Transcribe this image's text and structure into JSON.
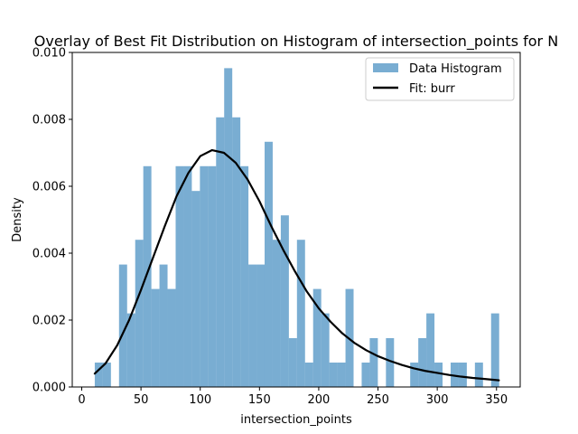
{
  "chart_data": {
    "type": "histogram",
    "title": "Overlay of Best Fit Distribution on Histogram of intersection_points for N",
    "xlabel": "intersection_points",
    "ylabel": "Density",
    "xlim": [
      -8,
      370
    ],
    "ylim": [
      0,
      0.01
    ],
    "xticks": [
      0,
      50,
      100,
      150,
      200,
      250,
      300,
      350
    ],
    "yticks": [
      0.0,
      0.002,
      0.004,
      0.006,
      0.008,
      0.01
    ],
    "ytick_labels": [
      "0.000",
      "0.002",
      "0.004",
      "0.006",
      "0.008",
      "0.010"
    ],
    "grid": false,
    "legend_position": "top-right",
    "histogram": {
      "name": "Data Histogram",
      "color": "#1f77b4",
      "alpha": 0.6,
      "bin_edges": [
        11,
        17.825,
        24.65,
        31.475,
        38.3,
        45.125,
        51.95,
        58.775,
        65.6,
        72.425,
        79.25,
        86.075,
        92.9,
        99.725,
        106.55,
        113.375,
        120.2,
        127.025,
        133.85,
        140.675,
        147.5,
        154.325,
        161.15,
        167.975,
        174.8,
        181.625,
        188.45,
        195.275,
        202.1,
        208.925,
        215.75,
        222.575,
        229.4,
        236.225,
        243.05,
        249.875,
        256.7,
        263.525,
        270.35,
        277.175,
        284.0,
        290.825,
        297.65,
        304.475,
        311.3,
        318.125,
        324.95,
        331.775,
        338.6,
        345.425,
        352.25
      ],
      "densities": [
        0.00073,
        0.00073,
        0.0,
        0.00366,
        0.0022,
        0.0044,
        0.0066,
        0.00293,
        0.00366,
        0.00293,
        0.0066,
        0.0066,
        0.00586,
        0.0066,
        0.0066,
        0.00806,
        0.00953,
        0.00806,
        0.0066,
        0.00366,
        0.00366,
        0.00733,
        0.0044,
        0.00513,
        0.00146,
        0.0044,
        0.00073,
        0.00293,
        0.0022,
        0.00073,
        0.00073,
        0.00293,
        0.0,
        0.00073,
        0.00146,
        0.0,
        0.00146,
        0.0,
        0.0,
        0.00073,
        0.00146,
        0.0022,
        0.00073,
        0.0,
        0.00073,
        0.00073,
        0.0,
        0.00073,
        0.0,
        0.0022
      ]
    },
    "fit": {
      "name": "Fit: burr",
      "color": "#000000",
      "x": [
        11,
        20,
        30,
        40,
        50,
        60,
        70,
        80,
        90,
        100,
        110,
        120,
        130,
        140,
        150,
        160,
        170,
        180,
        190,
        200,
        210,
        220,
        230,
        240,
        250,
        260,
        270,
        280,
        290,
        300,
        310,
        320,
        330,
        340,
        352
      ],
      "y": [
        0.0004,
        0.0007,
        0.00125,
        0.002,
        0.0029,
        0.00385,
        0.0048,
        0.0057,
        0.0064,
        0.0069,
        0.00708,
        0.007,
        0.0067,
        0.0062,
        0.00555,
        0.0048,
        0.0041,
        0.00345,
        0.00285,
        0.00235,
        0.00195,
        0.0016,
        0.00132,
        0.0011,
        0.00092,
        0.00078,
        0.00066,
        0.00056,
        0.00048,
        0.00042,
        0.00036,
        0.00031,
        0.00027,
        0.00024,
        0.0002
      ]
    }
  }
}
